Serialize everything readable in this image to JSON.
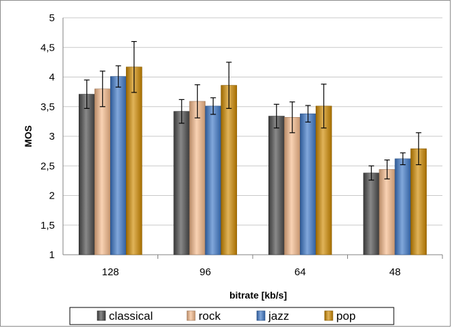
{
  "chart_data": {
    "type": "bar",
    "xlabel": "bitrate [kb/s]",
    "ylabel": "MOS",
    "ylim": [
      1,
      5
    ],
    "yticks": [
      "1",
      "1,5",
      "2",
      "2,5",
      "3",
      "3,5",
      "4",
      "4,5",
      "5"
    ],
    "ytick_values": [
      1,
      1.5,
      2,
      2.5,
      3,
      3.5,
      4,
      4.5,
      5
    ],
    "categories": [
      "128",
      "96",
      "64",
      "48"
    ],
    "grid": "horizontal",
    "legend_placement": "bottom",
    "error_bars": true,
    "series": [
      {
        "name": "classical",
        "color": "#4a4a4a",
        "values": [
          3.71,
          3.42,
          3.34,
          2.38
        ],
        "error": [
          0.24,
          0.2,
          0.2,
          0.12
        ]
      },
      {
        "name": "rock",
        "color": "#f5b98a",
        "values": [
          3.8,
          3.59,
          3.32,
          2.44
        ],
        "error": [
          0.3,
          0.28,
          0.26,
          0.16
        ]
      },
      {
        "name": "jazz",
        "color": "#3d78c8",
        "values": [
          4.01,
          3.51,
          3.38,
          2.62
        ],
        "error": [
          0.18,
          0.14,
          0.14,
          0.1
        ]
      },
      {
        "name": "pop",
        "color": "#d08a00",
        "values": [
          4.17,
          3.86,
          3.51,
          2.79
        ],
        "error": [
          0.43,
          0.39,
          0.37,
          0.27
        ]
      }
    ]
  }
}
